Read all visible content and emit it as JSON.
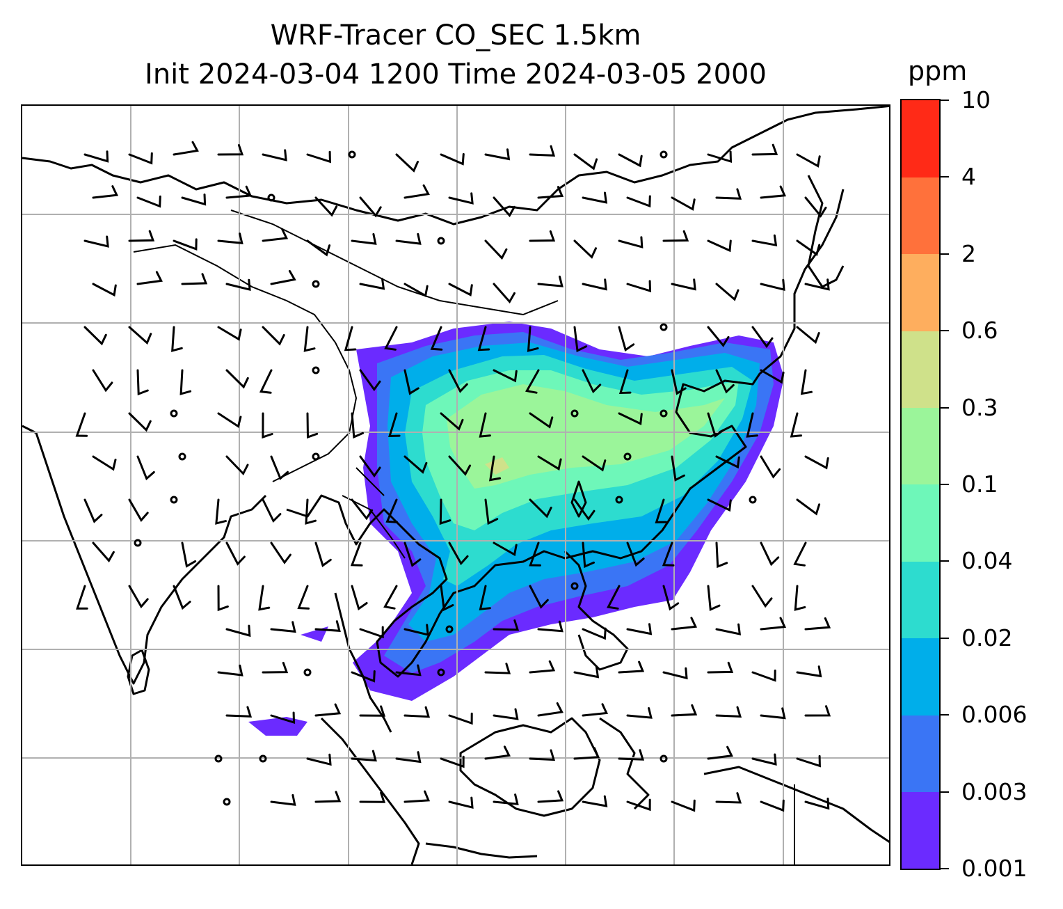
{
  "title": {
    "line1": "WRF-Tracer CO_SEC 1.5km",
    "line2": "Init 2024-03-04 1200 Time 2024-03-05 2000"
  },
  "colorbar": {
    "unit": "ppm",
    "ticks": [
      "0.001",
      "0.003",
      "0.006",
      "0.02",
      "0.04",
      "0.1",
      "0.3",
      "0.6",
      "2",
      "4",
      "10"
    ],
    "colors": [
      "#6b2bff",
      "#3a75f5",
      "#00aeea",
      "#2ddccf",
      "#6ef7b9",
      "#9bf59a",
      "#cfe18a",
      "#feae5e",
      "#ff713b",
      "#ff2a17"
    ]
  },
  "map": {
    "field": "CO_SEC tracer concentration",
    "features": [
      "coastlines",
      "country borders",
      "lat/lon gridlines",
      "wind barbs",
      "calm-wind circles"
    ]
  }
}
